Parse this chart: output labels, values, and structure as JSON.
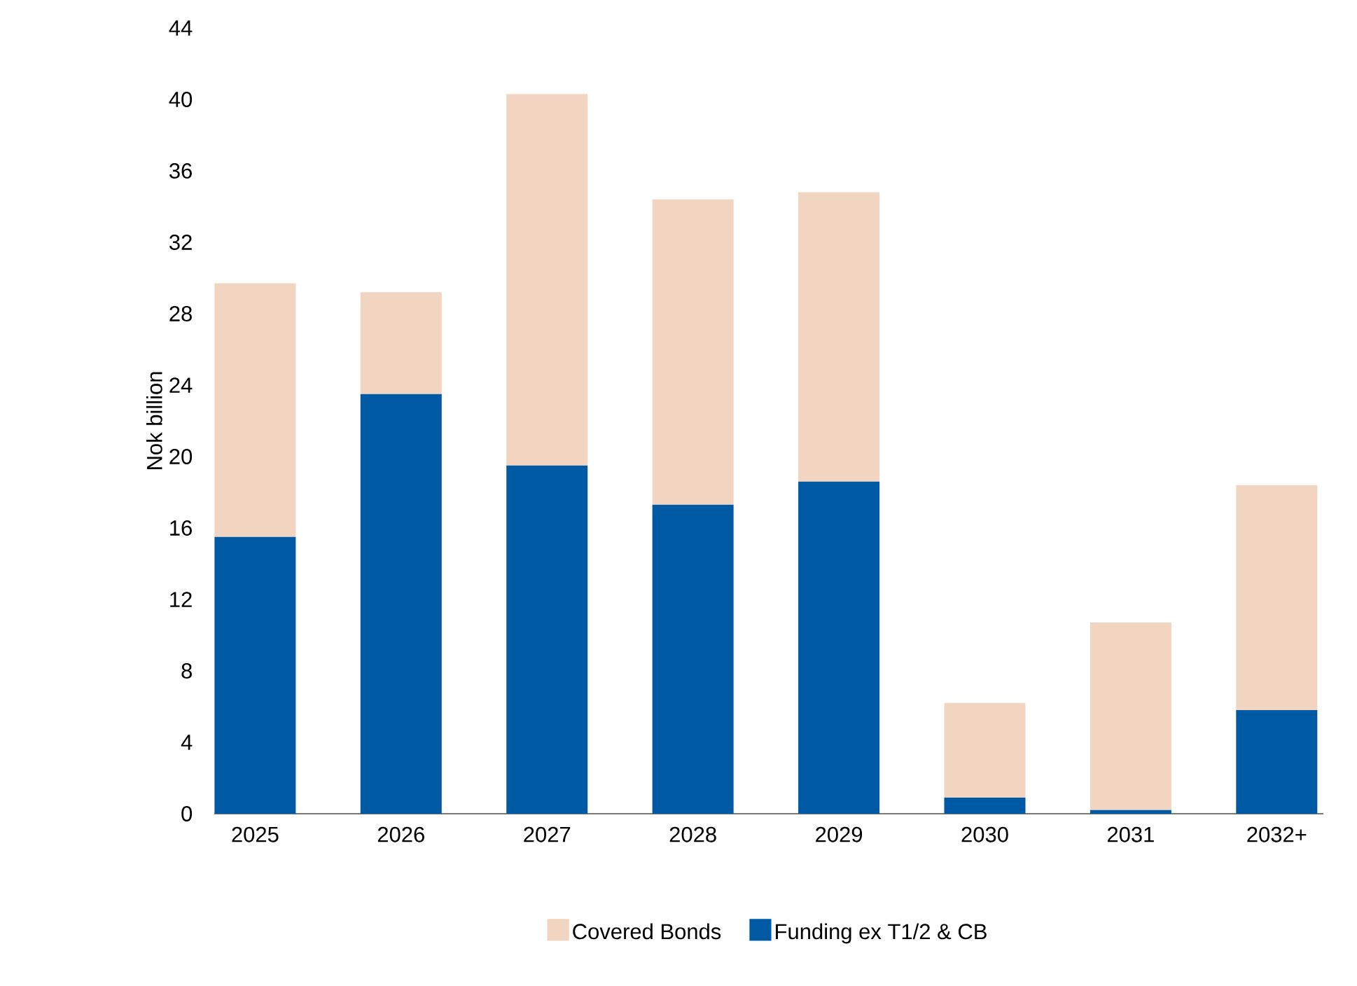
{
  "chart_data": {
    "type": "bar",
    "stacked": true,
    "ylabel": "Nok billion",
    "categories": [
      "2025",
      "2026",
      "2027",
      "2028",
      "2029",
      "2030",
      "2031",
      "2032+"
    ],
    "series": [
      {
        "name": "Funding ex T1/2 & CB",
        "color": "#005aa3",
        "values": [
          15.5,
          23.5,
          19.5,
          17.3,
          18.6,
          0.9,
          0.2,
          5.8
        ]
      },
      {
        "name": "Covered Bonds",
        "color": "#f2d5c0",
        "values": [
          14.2,
          5.7,
          20.8,
          17.1,
          16.2,
          5.3,
          10.5,
          12.6
        ]
      }
    ],
    "ylim": [
      0,
      44
    ],
    "yticks": [
      0,
      4,
      8,
      12,
      16,
      20,
      24,
      28,
      32,
      36,
      40,
      44
    ],
    "legend": "bottom",
    "grid": false
  }
}
